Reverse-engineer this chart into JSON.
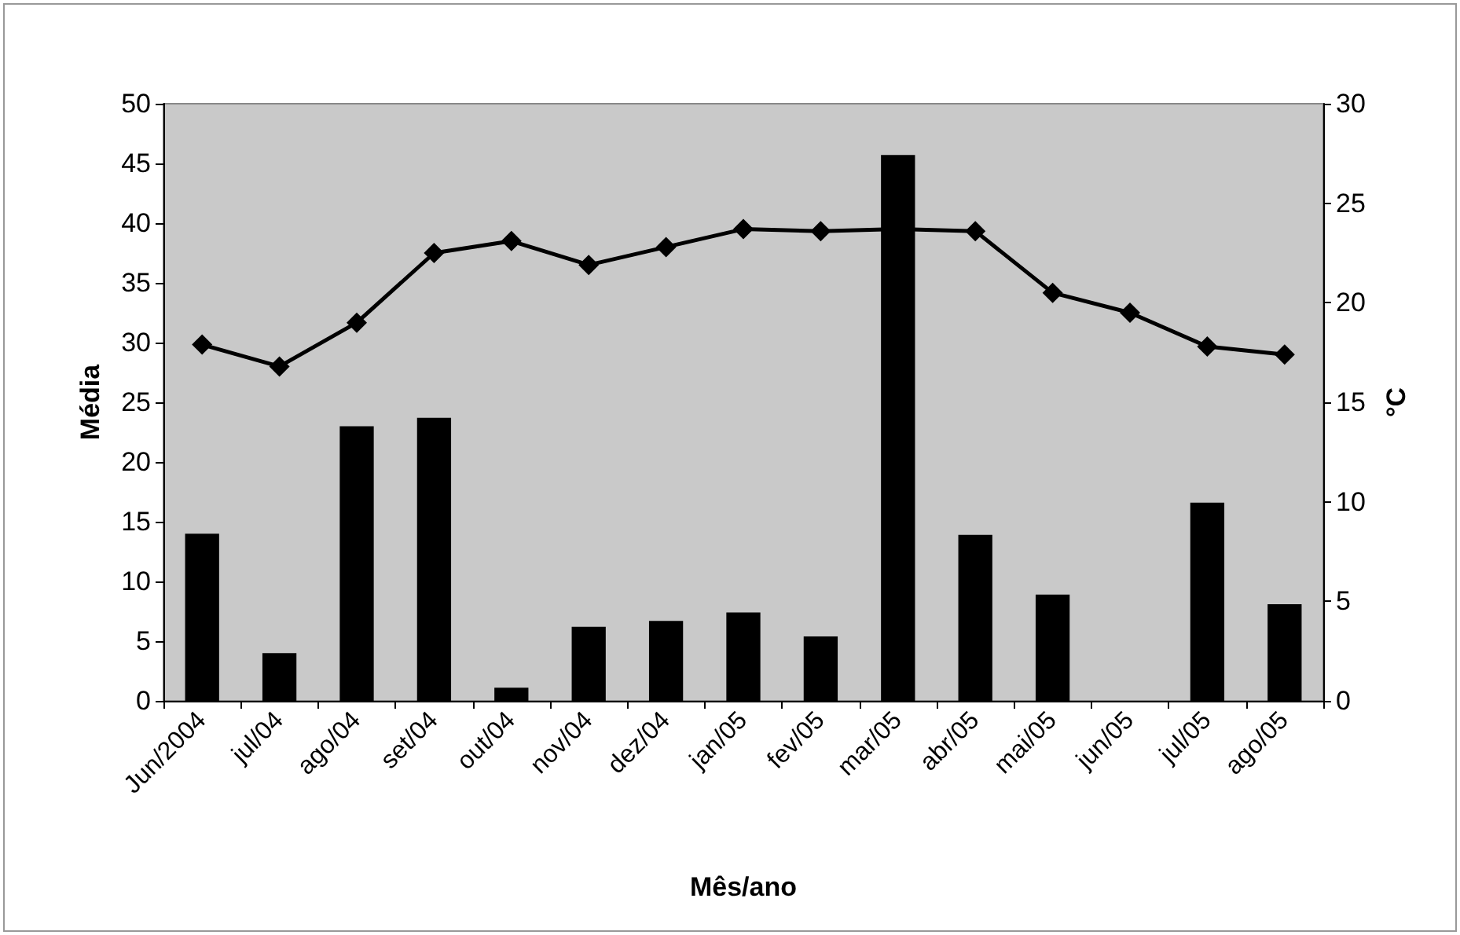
{
  "chart_data": {
    "type": "bar",
    "xlabel": "Mês/ano",
    "ylabel": "Média",
    "y2label": "°C",
    "categories": [
      "Jun/2004",
      "jul/04",
      "ago/04",
      "set/04",
      "out/04",
      "nov/04",
      "dez/04",
      "jan/05",
      "fev/05",
      "mar/05",
      "abr/05",
      "mai/05",
      "jun/05",
      "jul/05",
      "ago/05"
    ],
    "series": [
      {
        "color": "#000000",
        "values": [
          14.0,
          4.0,
          23.0,
          23.7,
          1.1,
          6.2,
          6.7,
          7.4,
          5.4,
          45.7,
          13.9,
          8.9,
          0,
          16.6,
          8.1
        ]
      },
      {
        "type": "line",
        "axis": "y2",
        "color": "#000000",
        "values": [
          17.9,
          16.8,
          19.0,
          22.5,
          23.1,
          21.9,
          22.8,
          23.7,
          23.6,
          23.7,
          23.6,
          20.5,
          19.5,
          17.8,
          17.4
        ]
      }
    ],
    "ylim": [
      0,
      50
    ],
    "yticks": [
      0,
      5,
      10,
      15,
      20,
      25,
      30,
      35,
      40,
      45,
      50
    ],
    "y2lim": [
      0,
      30
    ],
    "y2ticks": [
      0,
      5,
      10,
      15,
      20,
      25,
      30
    ],
    "grid": false,
    "marker": "diamond",
    "line_style": "solid"
  }
}
